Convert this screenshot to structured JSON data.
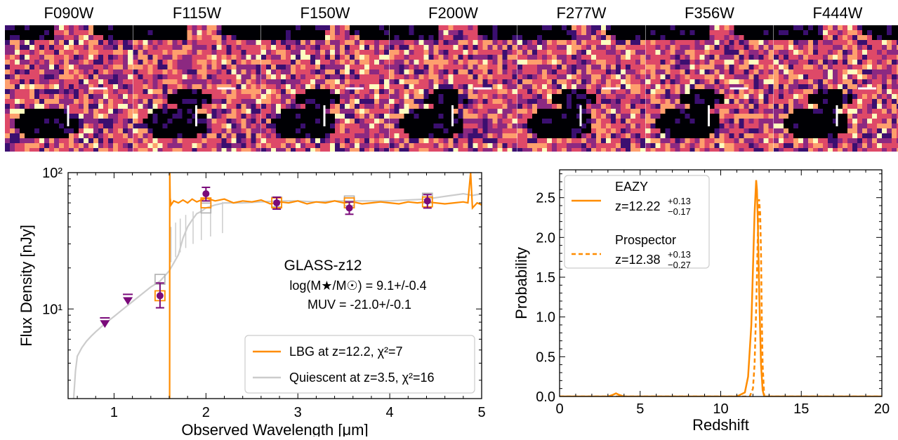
{
  "stamps": {
    "filters": [
      "F090W",
      "F115W",
      "F150W",
      "F200W",
      "F277W",
      "F356W",
      "F444W"
    ],
    "colormap": [
      "#000004",
      "#3b0f70",
      "#8c2981",
      "#de4968",
      "#fe9f6d",
      "#fcfdbf"
    ]
  },
  "chart_data": [
    {
      "type": "scatter",
      "panel": "sed",
      "title": "",
      "xlabel": "Observed Wavelength [μm]",
      "ylabel": "Flux Density [nJy]",
      "xlim": [
        0.5,
        5.0
      ],
      "ylim": [
        2.2,
        100
      ],
      "yscale": "log",
      "x_ticks": [
        1,
        2,
        3,
        4,
        5
      ],
      "x_tick_labels": [
        "1",
        "2",
        "3",
        "4",
        "5"
      ],
      "y_ticks": [
        10,
        100
      ],
      "y_tick_labels": [
        "10¹",
        "10²"
      ],
      "grid": false,
      "legend_position": "bottom-right",
      "annotation": {
        "name": "GLASS-z12",
        "mass": "log(M★/M☉) = 9.1+/-0.4",
        "muv": "MUV = -21.0+/-0.1"
      },
      "series": [
        {
          "name": "LBG at z=12.2, χ²=7",
          "kind": "line",
          "color": "#ff8c00",
          "x": [
            1.605,
            1.606,
            1.61,
            1.62,
            1.65,
            1.7,
            1.75,
            1.8,
            1.85,
            1.9,
            2.0,
            2.1,
            2.2,
            2.3,
            2.4,
            2.5,
            2.6,
            2.7,
            2.8,
            2.9,
            3.0,
            3.1,
            3.2,
            3.3,
            3.4,
            3.5,
            3.6,
            3.7,
            3.8,
            3.9,
            4.0,
            4.1,
            4.2,
            4.3,
            4.4,
            4.5,
            4.6,
            4.7,
            4.8,
            4.85,
            4.88,
            4.9,
            4.95,
            5.0
          ],
          "y": [
            2.2,
            100,
            65,
            58,
            62,
            60,
            63,
            60,
            64,
            61,
            65,
            62,
            64,
            60,
            62,
            61,
            63,
            59,
            61,
            60,
            62,
            59,
            61,
            60,
            62,
            60,
            61,
            59,
            60,
            61,
            60,
            59,
            61,
            60,
            61,
            60,
            59,
            60,
            61,
            60,
            100,
            55,
            60,
            58
          ],
          "drop_x": 1.605
        },
        {
          "name": "Quiescent at z=3.5, χ²=16",
          "kind": "line",
          "color": "#cccccc",
          "x": [
            0.56,
            0.58,
            0.6,
            0.65,
            0.7,
            0.75,
            0.8,
            0.9,
            1.0,
            1.1,
            1.2,
            1.3,
            1.4,
            1.5,
            1.6,
            1.7,
            1.75,
            1.8,
            1.85,
            1.9,
            1.95,
            2.0,
            2.1,
            2.2,
            2.4,
            2.6,
            2.8,
            3.0,
            3.2,
            3.4,
            3.6,
            3.8,
            4.0,
            4.2,
            4.4,
            4.6,
            4.8,
            4.9,
            5.0
          ],
          "y": [
            2.2,
            3.5,
            4.5,
            5.2,
            5.8,
            6.3,
            6.8,
            7.8,
            8.8,
            10.0,
            11.3,
            12.8,
            14.5,
            16.0,
            19.0,
            25.0,
            33.0,
            40.0,
            45.0,
            50.0,
            52.0,
            55.0,
            58.0,
            60.0,
            60.0,
            61.0,
            62.0,
            62.0,
            61.0,
            62.0,
            62.0,
            62.0,
            62.0,
            63.0,
            64.0,
            67.0,
            70.0,
            68.0,
            70.0
          ]
        }
      ],
      "observed": {
        "name": "Observed photometry",
        "color": "#7a0a7a",
        "x": [
          0.9,
          1.15,
          1.5,
          2.0,
          2.77,
          3.56,
          4.41
        ],
        "y": [
          7.8,
          11.5,
          12.5,
          70.0,
          60.0,
          55.0,
          62.0
        ],
        "y_lo": [
          0,
          0,
          10.2,
          62.0,
          54.0,
          49.5,
          55.0
        ],
        "y_hi": [
          8.6,
          12.8,
          15.5,
          78.0,
          66.0,
          61.0,
          69.0
        ],
        "upper_limit": [
          true,
          true,
          false,
          false,
          false,
          false,
          false
        ]
      },
      "model_photometry": {
        "lbg_color": "#ff8c00",
        "quiescent_color": "#b0b0b0",
        "x": [
          1.5,
          2.0,
          2.77,
          3.56,
          4.41
        ],
        "lbg_y": [
          12.5,
          60.0,
          60.0,
          60.0,
          61.0
        ],
        "quiescent_y": [
          16.5,
          55.0,
          61.0,
          62.0,
          65.0
        ]
      }
    },
    {
      "type": "line",
      "panel": "pz",
      "title": "",
      "xlabel": "Redshift",
      "ylabel": "Probability",
      "xlim": [
        0,
        20
      ],
      "ylim": [
        0,
        2.85
      ],
      "x_ticks": [
        0,
        5,
        10,
        15,
        20
      ],
      "x_tick_labels": [
        "0",
        "5",
        "10",
        "15",
        "20"
      ],
      "y_ticks": [
        0,
        0.5,
        1.0,
        1.5,
        2.0,
        2.5
      ],
      "y_tick_labels": [
        "0.0",
        "0.5",
        "1.0",
        "1.5",
        "2.0",
        "2.5"
      ],
      "grid": false,
      "legend_position": "top-left",
      "series": [
        {
          "name": "EAZY",
          "label": "z=12.22",
          "sup": "+0.13",
          "sub": "−0.17",
          "color": "#ff8c00",
          "dash": "solid",
          "x": [
            0,
            3.0,
            3.3,
            3.5,
            3.7,
            4.0,
            11.0,
            11.5,
            11.7,
            11.9,
            12.0,
            12.1,
            12.2,
            12.25,
            12.3,
            12.4,
            12.5,
            12.6,
            12.7,
            13.0,
            20
          ],
          "y": [
            0,
            0,
            0.02,
            0.04,
            0.02,
            0,
            0,
            0.05,
            0.25,
            0.9,
            1.6,
            2.3,
            2.72,
            2.6,
            2.2,
            1.2,
            0.4,
            0.08,
            0,
            0,
            0
          ]
        },
        {
          "name": "Prospector",
          "label": "z=12.38",
          "sup": "+0.13",
          "sub": "−0.27",
          "color": "#ff8c00",
          "dash": "dashed",
          "x": [
            0,
            11.8,
            12.0,
            12.1,
            12.2,
            12.3,
            12.38,
            12.45,
            12.5,
            12.55,
            12.6,
            12.7,
            20
          ],
          "y": [
            0,
            0,
            0.1,
            0.4,
            1.1,
            2.0,
            2.48,
            2.3,
            1.8,
            1.0,
            0.4,
            0,
            0
          ]
        }
      ]
    }
  ]
}
